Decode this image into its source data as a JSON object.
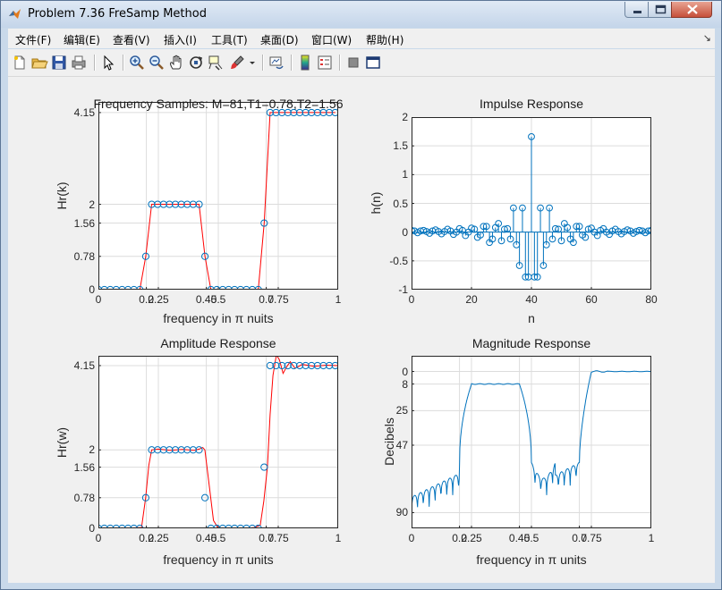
{
  "window": {
    "title": "Problem 7.36 FreSamp Method"
  },
  "menu": [
    "文件(F)",
    "编辑(E)",
    "查看(V)",
    "插入(I)",
    "工具(T)",
    "桌面(D)",
    "窗口(W)",
    "帮助(H)"
  ],
  "menu_overflow": "↘",
  "toolbar": [
    "new-figure-icon",
    "open-file-icon",
    "save-icon",
    "print-icon",
    "select-arrow-icon",
    "zoom-in-icon",
    "zoom-out-icon",
    "pan-icon",
    "rotate-icon",
    "data-cursor-icon",
    "brush-icon",
    "brush-dropdown-icon",
    "link-plot-icon",
    "colorbar-icon",
    "legend-icon",
    "hide-tools-icon",
    "dock-icon"
  ],
  "colors": {
    "stem": "#0072bd",
    "red": "#ff0000",
    "grid": "#dcdcdc"
  },
  "chart_data": [
    {
      "type": "scatter",
      "title": "Frequency Samples: M=81,T1=0.78,T2=1.56",
      "xlabel": "frequency in π nuits",
      "ylabel": "Hr(k)",
      "xlim": [
        0,
        1
      ],
      "ylim": [
        0,
        4.4
      ],
      "xticks": [
        0,
        0.2,
        0.25,
        0.45,
        0.5,
        0.7,
        0.75,
        1
      ],
      "xtick_labels": [
        "0",
        "0.2",
        "0.25",
        "0.45",
        "0.5",
        "0.7",
        "0.75",
        "1"
      ],
      "yticks": [
        0,
        0.78,
        1.56,
        2,
        4.15
      ],
      "ytick_labels": [
        "0",
        "0.78",
        "1.56",
        "2",
        "4.15"
      ],
      "x": [
        0,
        0.0247,
        0.0494,
        0.0741,
        0.0988,
        0.1235,
        0.1481,
        0.1728,
        0.1975,
        0.2222,
        0.2469,
        0.2716,
        0.2963,
        0.321,
        0.3457,
        0.3704,
        0.3951,
        0.4198,
        0.4444,
        0.4691,
        0.4938,
        0.5185,
        0.5432,
        0.5679,
        0.5926,
        0.6173,
        0.642,
        0.6667,
        0.6914,
        0.716,
        0.7407,
        0.7654,
        0.7901,
        0.8148,
        0.8395,
        0.8642,
        0.8889,
        0.9136,
        0.9383,
        0.963,
        0.9877
      ],
      "values": [
        0,
        0,
        0,
        0,
        0,
        0,
        0,
        0,
        0.78,
        2,
        2,
        2,
        2,
        2,
        2,
        2,
        2,
        2,
        0.78,
        0,
        0,
        0,
        0,
        0,
        0,
        0,
        0,
        0,
        1.56,
        4.15,
        4.15,
        4.15,
        4.15,
        4.15,
        4.15,
        4.15,
        4.15,
        4.15,
        4.15,
        4.15,
        4.15
      ]
    },
    {
      "type": "scatter",
      "title": "Impulse Response",
      "xlabel": "n",
      "ylabel": "h(n)",
      "xlim": [
        0,
        80
      ],
      "ylim": [
        -1,
        2
      ],
      "xticks": [
        0,
        20,
        40,
        60,
        80
      ],
      "xtick_labels": [
        "0",
        "20",
        "40",
        "60",
        "80"
      ],
      "yticks": [
        -1,
        -0.5,
        0,
        0.5,
        1,
        1.5,
        2
      ],
      "ytick_labels": [
        "-1",
        "-0.5",
        "0",
        "0.5",
        "1",
        "1.5",
        "2"
      ],
      "x": [
        0,
        1,
        2,
        3,
        4,
        5,
        6,
        7,
        8,
        9,
        10,
        11,
        12,
        13,
        14,
        15,
        16,
        17,
        18,
        19,
        20,
        21,
        22,
        23,
        24,
        25,
        26,
        27,
        28,
        29,
        30,
        31,
        32,
        33,
        34,
        35,
        36,
        37,
        38,
        39,
        40,
        41,
        42,
        43,
        44,
        45,
        46,
        47,
        48,
        49,
        50,
        51,
        52,
        53,
        54,
        55,
        56,
        57,
        58,
        59,
        60,
        61,
        62,
        63,
        64,
        65,
        66,
        67,
        68,
        69,
        70,
        71,
        72,
        73,
        74,
        75,
        76,
        77,
        78,
        79,
        80
      ],
      "values": [
        0.03,
        0.02,
        -0.01,
        0.02,
        0.03,
        0.01,
        -0.02,
        0.02,
        0.04,
        0.01,
        -0.03,
        0.01,
        0.05,
        0.02,
        -0.04,
        0.0,
        0.06,
        0.03,
        -0.06,
        0.0,
        0.07,
        0.05,
        -0.09,
        -0.05,
        0.1,
        0.1,
        -0.18,
        -0.12,
        0.08,
        0.15,
        -0.15,
        0.05,
        0.06,
        -0.12,
        0.42,
        -0.22,
        -0.58,
        0.42,
        -0.78,
        -0.78,
        1.66,
        -0.78,
        -0.78,
        0.42,
        -0.58,
        -0.22,
        0.42,
        -0.12,
        0.06,
        0.05,
        -0.15,
        0.15,
        0.08,
        -0.12,
        -0.18,
        0.1,
        0.1,
        -0.05,
        -0.09,
        0.05,
        0.07,
        0.0,
        -0.06,
        0.03,
        0.06,
        0.0,
        -0.04,
        0.02,
        0.05,
        0.01,
        -0.03,
        0.01,
        0.04,
        0.02,
        -0.02,
        0.01,
        0.03,
        0.02,
        -0.01,
        0.02,
        0.03
      ]
    },
    {
      "type": "line",
      "title": "Amplitude Response",
      "xlabel": "frequency in π units",
      "ylabel": "Hr(w)",
      "xlim": [
        0,
        1
      ],
      "ylim": [
        0,
        4.4
      ],
      "xticks": [
        0,
        0.2,
        0.25,
        0.45,
        0.5,
        0.7,
        0.75,
        1
      ],
      "xtick_labels": [
        "0",
        "0.2",
        "0.25",
        "0.45",
        "0.5",
        "0.7",
        "0.75",
        "1"
      ],
      "yticks": [
        0,
        0.78,
        1.56,
        2,
        4.15
      ],
      "ytick_labels": [
        "0",
        "0.78",
        "1.56",
        "2",
        "4.15"
      ],
      "sample_x": [
        0,
        0.0247,
        0.0494,
        0.0741,
        0.0988,
        0.1235,
        0.1481,
        0.1728,
        0.1975,
        0.2222,
        0.2469,
        0.2716,
        0.2963,
        0.321,
        0.3457,
        0.3704,
        0.3951,
        0.4198,
        0.4444,
        0.4691,
        0.4938,
        0.5185,
        0.5432,
        0.5679,
        0.5926,
        0.6173,
        0.642,
        0.6667,
        0.6914,
        0.716,
        0.7407,
        0.7654,
        0.7901,
        0.8148,
        0.8395,
        0.8642,
        0.8889,
        0.9136,
        0.9383,
        0.963,
        0.9877
      ],
      "sample_values": [
        0,
        0,
        0,
        0,
        0,
        0,
        0,
        0,
        0.78,
        2,
        2,
        2,
        2,
        2,
        2,
        2,
        2,
        2,
        0.78,
        0,
        0,
        0,
        0,
        0,
        0,
        0,
        0,
        0,
        1.56,
        4.15,
        4.15,
        4.15,
        4.15,
        4.15,
        4.15,
        4.15,
        4.15,
        4.15,
        4.15,
        4.15,
        4.15
      ],
      "curve_x": [
        0,
        0.1,
        0.18,
        0.197,
        0.21,
        0.222,
        0.25,
        0.3,
        0.35,
        0.4,
        0.42,
        0.435,
        0.444,
        0.46,
        0.48,
        0.5,
        0.55,
        0.6,
        0.65,
        0.675,
        0.69,
        0.705,
        0.716,
        0.728,
        0.742,
        0.755,
        0.77,
        0.785,
        0.8,
        0.82,
        0.85,
        0.9,
        0.95,
        1
      ],
      "curve_values": [
        0,
        0,
        0.02,
        0.78,
        1.6,
        2,
        2.02,
        1.99,
        2.01,
        1.99,
        2.02,
        2.06,
        2,
        1.2,
        0.2,
        0.0,
        0.01,
        -0.01,
        0.02,
        0.08,
        0.7,
        1.56,
        2.9,
        3.9,
        4.42,
        4.3,
        3.95,
        4.12,
        4.25,
        4.08,
        4.18,
        4.13,
        4.16,
        4.15
      ]
    },
    {
      "type": "line",
      "title": "Magnitude Response",
      "xlabel": "frequency in π units",
      "ylabel": "Decibels",
      "xlim": [
        0,
        1
      ],
      "ylim": [
        -100,
        10
      ],
      "xticks": [
        0,
        0.2,
        0.25,
        0.45,
        0.5,
        0.7,
        0.75,
        1
      ],
      "xtick_labels": [
        "0",
        "0.2",
        "0.25",
        "0.45",
        "0.5",
        "0.7",
        "0.75",
        "1"
      ],
      "yticks": [
        0,
        -8,
        -25,
        -47,
        -90
      ],
      "ytick_labels": [
        "0",
        "8",
        "25",
        "47",
        "90"
      ]
    }
  ]
}
